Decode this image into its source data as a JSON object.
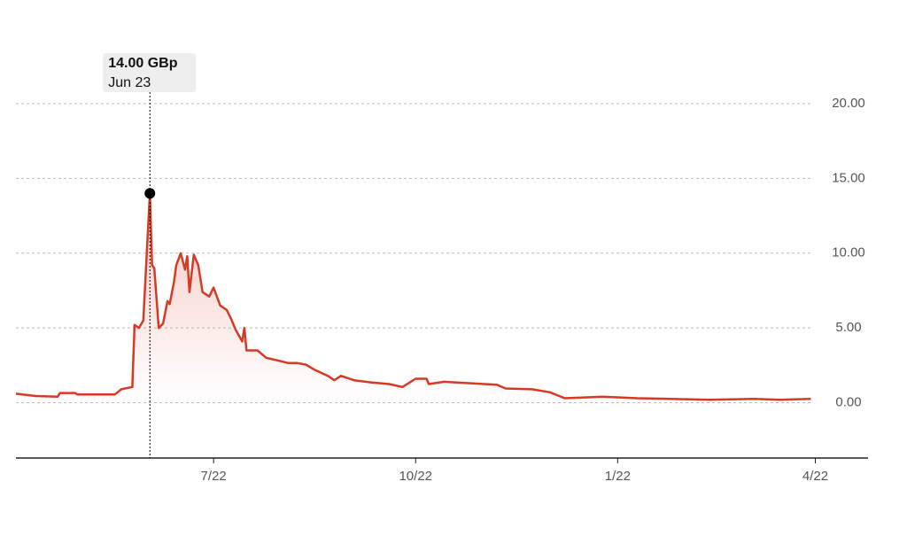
{
  "chart_data": {
    "type": "line",
    "x": [
      0,
      9,
      19,
      20,
      27,
      28,
      45,
      48,
      53,
      54,
      56,
      58,
      61,
      62,
      63,
      65,
      67,
      69,
      70,
      72,
      73,
      75,
      77,
      78,
      79,
      81,
      83,
      85,
      88,
      90,
      93,
      96,
      98,
      100,
      103,
      104,
      105,
      110,
      114,
      120,
      124,
      128,
      132,
      136,
      142,
      145,
      148,
      154,
      162,
      170,
      176,
      182,
      187,
      188,
      195,
      207,
      219,
      223,
      235,
      243,
      250,
      259,
      267,
      283,
      299,
      316,
      336,
      348,
      362
    ],
    "series": [
      {
        "color": "#d63a25",
        "values": [
          0.6,
          0.45,
          0.4,
          0.65,
          0.65,
          0.55,
          0.55,
          0.9,
          1.05,
          5.2,
          5.0,
          5.5,
          14.0,
          9.2,
          9.0,
          5.0,
          5.3,
          6.8,
          6.6,
          8.1,
          9.2,
          10.0,
          8.9,
          9.8,
          7.4,
          9.9,
          9.2,
          7.4,
          7.1,
          7.7,
          6.5,
          6.2,
          5.6,
          4.9,
          4.1,
          5.0,
          3.5,
          3.5,
          3.0,
          2.8,
          2.65,
          2.65,
          2.55,
          2.2,
          1.8,
          1.5,
          1.8,
          1.5,
          1.35,
          1.25,
          1.05,
          1.6,
          1.6,
          1.25,
          1.4,
          1.3,
          1.2,
          0.95,
          0.9,
          0.7,
          0.3,
          0.35,
          0.4,
          0.3,
          0.25,
          0.2,
          0.25,
          0.2,
          0.25
        ]
      }
    ],
    "xlim": [
      0,
      388
    ],
    "xticks": [
      {
        "value": 90,
        "label": "7/22"
      },
      {
        "value": 182,
        "label": "10/22"
      },
      {
        "value": 274,
        "label": "1/22"
      },
      {
        "value": 364,
        "label": "4/22"
      }
    ],
    "ylim": [
      -3.7,
      20
    ],
    "yticks": [
      {
        "value": 0,
        "label": "0.00"
      },
      {
        "value": 5,
        "label": "5.00"
      },
      {
        "value": 10,
        "label": "10.00"
      },
      {
        "value": 15,
        "label": "15.00"
      },
      {
        "value": 20,
        "label": "20.00"
      }
    ],
    "grid": true,
    "tooltip": {
      "label": "14.00 GBp",
      "date": "Jun 23",
      "x": 61,
      "value": 14
    }
  }
}
